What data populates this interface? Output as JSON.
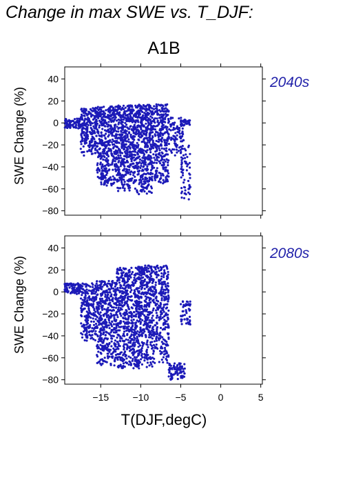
{
  "figure": {
    "title": "Change in max SWE vs. T_DJF:",
    "scenario": "A1B",
    "xlabel": "T(DJF,degC)",
    "ylabel": "SWE Change (%)",
    "point_color": "#1c1ab8",
    "panel_label_color": "#2222aa"
  },
  "chart_data": [
    {
      "type": "scatter",
      "panel_label": "2040s",
      "xlim": [
        -19.5,
        5.2
      ],
      "ylim": [
        -84,
        51
      ],
      "xticks": [
        -15,
        -10,
        -5,
        0,
        5
      ],
      "yticks": [
        40,
        20,
        0,
        -20,
        -40,
        -60,
        -80
      ],
      "show_x_tick_labels": false,
      "clusters": [
        {
          "x": [
            -19.5,
            -17.5
          ],
          "y": [
            -5,
            4
          ],
          "n": 90
        },
        {
          "x": [
            -17.5,
            -15.5
          ],
          "y": [
            -30,
            14
          ],
          "n": 220
        },
        {
          "x": [
            -15.5,
            -13.0
          ],
          "y": [
            -57,
            15
          ],
          "n": 420
        },
        {
          "x": [
            -13.0,
            -10.5
          ],
          "y": [
            -62,
            16
          ],
          "n": 480
        },
        {
          "x": [
            -10.5,
            -8.5
          ],
          "y": [
            -65,
            17
          ],
          "n": 420
        },
        {
          "x": [
            -8.5,
            -6.5
          ],
          "y": [
            -55,
            17
          ],
          "n": 300
        },
        {
          "x": [
            -6.5,
            -4.5
          ],
          "y": [
            -30,
            5
          ],
          "n": 90
        },
        {
          "x": [
            -5.0,
            -3.8
          ],
          "y": [
            -72,
            -20
          ],
          "n": 60
        },
        {
          "x": [
            -5.0,
            -3.8
          ],
          "y": [
            -2,
            3
          ],
          "n": 30
        }
      ]
    },
    {
      "type": "scatter",
      "panel_label": "2080s",
      "xlim": [
        -19.5,
        5.2
      ],
      "ylim": [
        -84,
        51
      ],
      "xticks": [
        -15,
        -10,
        -5,
        0,
        5
      ],
      "xtick_labels": [
        "−15",
        "−10",
        "−5",
        "0",
        "5"
      ],
      "yticks": [
        40,
        20,
        0,
        -20,
        -40,
        -60,
        -80
      ],
      "show_x_tick_labels": true,
      "clusters": [
        {
          "x": [
            -19.5,
            -17.5
          ],
          "y": [
            -2,
            8
          ],
          "n": 90
        },
        {
          "x": [
            -17.5,
            -15.5
          ],
          "y": [
            -45,
            8
          ],
          "n": 220
        },
        {
          "x": [
            -15.5,
            -13.0
          ],
          "y": [
            -68,
            10
          ],
          "n": 420
        },
        {
          "x": [
            -13.0,
            -10.5
          ],
          "y": [
            -70,
            22
          ],
          "n": 480
        },
        {
          "x": [
            -10.5,
            -8.5
          ],
          "y": [
            -70,
            24
          ],
          "n": 420
        },
        {
          "x": [
            -8.5,
            -6.5
          ],
          "y": [
            -65,
            24
          ],
          "n": 300
        },
        {
          "x": [
            -6.5,
            -4.5
          ],
          "y": [
            -80,
            -65
          ],
          "n": 80
        },
        {
          "x": [
            -5.0,
            -3.8
          ],
          "y": [
            -30,
            -8
          ],
          "n": 50
        }
      ]
    }
  ]
}
